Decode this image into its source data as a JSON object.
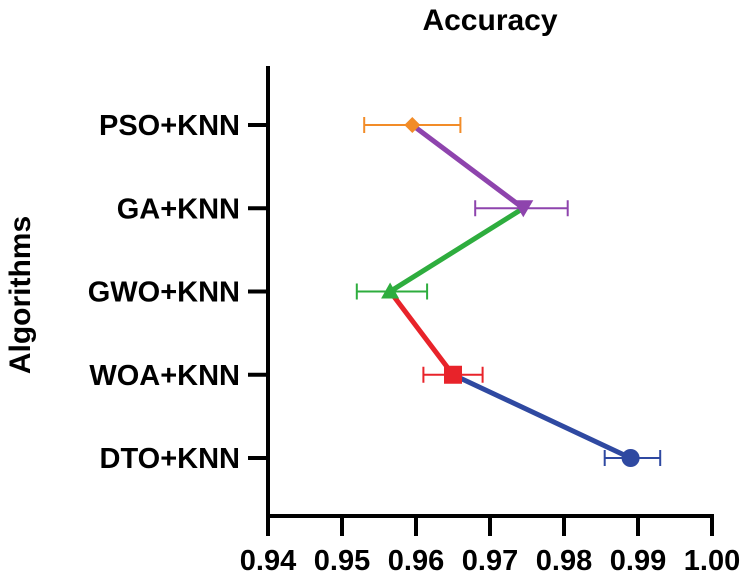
{
  "chart_data": {
    "type": "scatter",
    "title": "Accuracy",
    "xlabel": "",
    "ylabel": "Algorithms",
    "xlim": [
      0.94,
      1.0
    ],
    "xticks": [
      "0.94",
      "0.95",
      "0.96",
      "0.97",
      "0.98",
      "0.99",
      "1.00"
    ],
    "categories": [
      "PSO+KNN",
      "GA+KNN",
      "GWO+KNN",
      "WOA+KNN",
      "DTO+KNN"
    ],
    "points": [
      {
        "category": "PSO+KNN",
        "value": 0.9595,
        "err_low": 0.953,
        "err_high": 0.966,
        "marker": "diamond",
        "color": "#F28C28"
      },
      {
        "category": "GA+KNN",
        "value": 0.9745,
        "err_low": 0.968,
        "err_high": 0.9805,
        "marker": "triangle-down",
        "color": "#8E44AD"
      },
      {
        "category": "GWO+KNN",
        "value": 0.9565,
        "err_low": 0.952,
        "err_high": 0.9615,
        "marker": "triangle-up",
        "color": "#2EAD3E"
      },
      {
        "category": "WOA+KNN",
        "value": 0.965,
        "err_low": 0.961,
        "err_high": 0.969,
        "marker": "square",
        "color": "#E8232A"
      },
      {
        "category": "DTO+KNN",
        "value": 0.989,
        "err_low": 0.9855,
        "err_high": 0.993,
        "marker": "circle",
        "color": "#2F49A1"
      }
    ],
    "connecting_segments": [
      {
        "from": "PSO+KNN",
        "to": "GA+KNN",
        "color": "#8E44AD"
      },
      {
        "from": "GA+KNN",
        "to": "GWO+KNN",
        "color": "#2EAD3E"
      },
      {
        "from": "GWO+KNN",
        "to": "WOA+KNN",
        "color": "#E8232A"
      },
      {
        "from": "WOA+KNN",
        "to": "DTO+KNN",
        "color": "#2F49A1"
      }
    ],
    "grid": false,
    "legend": "none"
  }
}
